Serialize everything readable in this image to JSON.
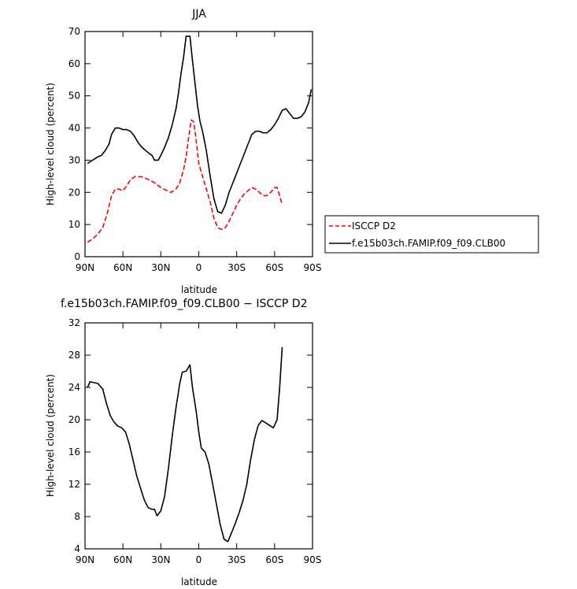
{
  "chart_data": [
    {
      "type": "line",
      "title": "JJA",
      "xlabel": "latitude",
      "ylabel": "High-level cloud (percent)",
      "xlim": [
        90,
        -90
      ],
      "ylim": [
        0,
        70
      ],
      "xticks": [
        {
          "value": 90,
          "label": "90N"
        },
        {
          "value": 60,
          "label": "60N"
        },
        {
          "value": 30,
          "label": "30N"
        },
        {
          "value": 0,
          "label": "0"
        },
        {
          "value": -30,
          "label": "30S"
        },
        {
          "value": -60,
          "label": "60S"
        },
        {
          "value": -90,
          "label": "90S"
        }
      ],
      "yticks": [
        0,
        10,
        20,
        30,
        40,
        50,
        60,
        70
      ],
      "grid": false,
      "legend_position": "outside-right",
      "series": [
        {
          "name": "ISCCP D2",
          "color": "#ff0000",
          "dash": "dashed",
          "points": [
            [
              88,
              4.5
            ],
            [
              84,
              5.5
            ],
            [
              80,
              7
            ],
            [
              76,
              9
            ],
            [
              72,
              14
            ],
            [
              69,
              19
            ],
            [
              66,
              21
            ],
            [
              63,
              21
            ],
            [
              60,
              20.5
            ],
            [
              57,
              22
            ],
            [
              54,
              24
            ],
            [
              50,
              25
            ],
            [
              45,
              24.8
            ],
            [
              40,
              24
            ],
            [
              35,
              23
            ],
            [
              30,
              21.5
            ],
            [
              25,
              20.5
            ],
            [
              22,
              20
            ],
            [
              18,
              21
            ],
            [
              15,
              23
            ],
            [
              12,
              27
            ],
            [
              10,
              31
            ],
            [
              8,
              37
            ],
            [
              6,
              42.5
            ],
            [
              4,
              42
            ],
            [
              2,
              36
            ],
            [
              0,
              29
            ],
            [
              -3,
              25
            ],
            [
              -6,
              21
            ],
            [
              -9,
              17
            ],
            [
              -12,
              12
            ],
            [
              -15,
              9
            ],
            [
              -18,
              8.5
            ],
            [
              -21,
              9
            ],
            [
              -24,
              11
            ],
            [
              -27,
              13.5
            ],
            [
              -30,
              16
            ],
            [
              -33,
              18
            ],
            [
              -36,
              19.5
            ],
            [
              -39,
              20.5
            ],
            [
              -42,
              21.5
            ],
            [
              -45,
              21
            ],
            [
              -48,
              20
            ],
            [
              -51,
              19
            ],
            [
              -54,
              19
            ],
            [
              -57,
              20
            ],
            [
              -60,
              21.5
            ],
            [
              -62,
              21.5
            ],
            [
              -64,
              19
            ],
            [
              -66,
              16
            ]
          ]
        },
        {
          "name": "f.e15b03ch.FAMIP.f09_f09.CLB00",
          "color": "#000000",
          "dash": "solid",
          "points": [
            [
              88,
              29
            ],
            [
              84,
              30
            ],
            [
              80,
              31
            ],
            [
              77,
              31.5
            ],
            [
              74,
              33
            ],
            [
              71,
              35
            ],
            [
              69,
              38
            ],
            [
              66,
              40
            ],
            [
              63,
              40
            ],
            [
              60,
              39.5
            ],
            [
              57,
              39.5
            ],
            [
              54,
              39
            ],
            [
              51,
              37.5
            ],
            [
              48,
              35.5
            ],
            [
              45,
              34
            ],
            [
              42,
              33
            ],
            [
              39,
              32
            ],
            [
              37,
              31.5
            ],
            [
              35,
              30
            ],
            [
              32,
              30
            ],
            [
              30,
              31.5
            ],
            [
              27,
              34
            ],
            [
              24,
              37
            ],
            [
              21,
              41
            ],
            [
              18,
              46
            ],
            [
              16,
              51
            ],
            [
              14,
              57
            ],
            [
              12,
              62
            ],
            [
              10,
              68.5
            ],
            [
              7,
              68.5
            ],
            [
              5,
              61
            ],
            [
              3,
              54
            ],
            [
              1,
              47
            ],
            [
              -1,
              42
            ],
            [
              -3,
              39
            ],
            [
              -6,
              33
            ],
            [
              -9,
              25
            ],
            [
              -12,
              18
            ],
            [
              -15,
              14
            ],
            [
              -18,
              13.5
            ],
            [
              -21,
              16
            ],
            [
              -24,
              20
            ],
            [
              -27,
              23
            ],
            [
              -30,
              26
            ],
            [
              -33,
              29
            ],
            [
              -36,
              32
            ],
            [
              -39,
              35
            ],
            [
              -42,
              38
            ],
            [
              -45,
              39
            ],
            [
              -48,
              39
            ],
            [
              -51,
              38.5
            ],
            [
              -54,
              38.5
            ],
            [
              -57,
              39.5
            ],
            [
              -60,
              41
            ],
            [
              -63,
              43
            ],
            [
              -66,
              45.5
            ],
            [
              -69,
              46
            ],
            [
              -72,
              44.5
            ],
            [
              -75,
              43
            ],
            [
              -78,
              43
            ],
            [
              -81,
              43.5
            ],
            [
              -84,
              45
            ],
            [
              -87,
              48
            ],
            [
              -89,
              52
            ]
          ]
        }
      ]
    },
    {
      "type": "line",
      "title": "f.e15b03ch.FAMIP.f09_f09.CLB00 − ISCCP D2",
      "xlabel": "latitude",
      "ylabel": "High-level cloud (percent)",
      "xlim": [
        90,
        -90
      ],
      "ylim": [
        4,
        32
      ],
      "xticks": [
        {
          "value": 90,
          "label": "90N"
        },
        {
          "value": 60,
          "label": "60N"
        },
        {
          "value": 30,
          "label": "30N"
        },
        {
          "value": 0,
          "label": "0"
        },
        {
          "value": -30,
          "label": "30S"
        },
        {
          "value": -60,
          "label": "60S"
        },
        {
          "value": -90,
          "label": "90S"
        }
      ],
      "yticks": [
        4,
        8,
        12,
        16,
        20,
        24,
        28,
        32
      ],
      "grid": false,
      "series": [
        {
          "color": "#000000",
          "dash": "solid",
          "points": [
            [
              88,
              24
            ],
            [
              86,
              24.7
            ],
            [
              83,
              24.6
            ],
            [
              80,
              24.5
            ],
            [
              76,
              23.8
            ],
            [
              73,
              22
            ],
            [
              70,
              20.5
            ],
            [
              67,
              19.7
            ],
            [
              64,
              19.2
            ],
            [
              61,
              19
            ],
            [
              58,
              18.5
            ],
            [
              55,
              17
            ],
            [
              52,
              15
            ],
            [
              49,
              13
            ],
            [
              46,
              11.5
            ],
            [
              43,
              10
            ],
            [
              40,
              9.1
            ],
            [
              37,
              8.9
            ],
            [
              35,
              8.9
            ],
            [
              33,
              8.1
            ],
            [
              30,
              8.7
            ],
            [
              27,
              10.5
            ],
            [
              24,
              14
            ],
            [
              21,
              18
            ],
            [
              18,
              21.5
            ],
            [
              15,
              24.5
            ],
            [
              13,
              25.9
            ],
            [
              10,
              26
            ],
            [
              7,
              26.8
            ],
            [
              5,
              24
            ],
            [
              2,
              21
            ],
            [
              0,
              18.5
            ],
            [
              -2,
              16.5
            ],
            [
              -5,
              16
            ],
            [
              -8,
              14.5
            ],
            [
              -11,
              12
            ],
            [
              -14,
              9.5
            ],
            [
              -17,
              7
            ],
            [
              -20,
              5.2
            ],
            [
              -23,
              4.9
            ],
            [
              -26,
              6
            ],
            [
              -29,
              7.2
            ],
            [
              -32,
              8.5
            ],
            [
              -35,
              10
            ],
            [
              -38,
              12
            ],
            [
              -41,
              15
            ],
            [
              -44,
              17.5
            ],
            [
              -47,
              19.3
            ],
            [
              -50,
              19.9
            ],
            [
              -53,
              19.6
            ],
            [
              -56,
              19.3
            ],
            [
              -59,
              19
            ],
            [
              -62,
              20
            ],
            [
              -64,
              24
            ],
            [
              -66,
              29
            ]
          ]
        }
      ]
    }
  ]
}
